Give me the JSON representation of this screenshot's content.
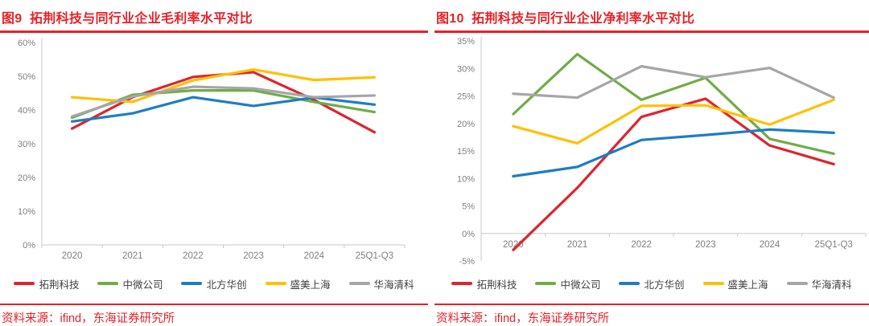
{
  "page": {
    "footer_source": "资料来源：ifind，东海证券研究所"
  },
  "chart_data": [
    {
      "type": "line",
      "title": "图9  拓荆科技与同行业企业毛利率水平对比",
      "categories": [
        "2020",
        "2021",
        "2022",
        "2023",
        "2024",
        "25Q1-Q3"
      ],
      "ylim": [
        0,
        60
      ],
      "ytick_step": 10,
      "ylabel_suffix": "%",
      "xaxis_at": 0,
      "grid": false,
      "legend_position": "bottom",
      "series": [
        {
          "name": "拓荆科技",
          "color": "#dc252e",
          "values": [
            34.5,
            43.8,
            49.8,
            51.2,
            43.0,
            33.4
          ]
        },
        {
          "name": "中微公司",
          "color": "#6fac46",
          "values": [
            37.7,
            44.5,
            45.8,
            45.8,
            42.4,
            39.4
          ]
        },
        {
          "name": "北方华创",
          "color": "#1f7cc4",
          "values": [
            36.6,
            39.0,
            43.8,
            41.2,
            43.7,
            41.6
          ]
        },
        {
          "name": "盛美上海",
          "color": "#ffc000",
          "values": [
            43.8,
            42.4,
            48.8,
            52.0,
            48.9,
            49.7
          ]
        },
        {
          "name": "华海清科",
          "color": "#a6a6a6",
          "values": [
            38.1,
            44.0,
            46.9,
            46.4,
            43.8,
            44.3
          ]
        }
      ]
    },
    {
      "type": "line",
      "title": "图10  拓荆科技与同行业企业净利率水平对比",
      "categories": [
        "2020",
        "2021",
        "2022",
        "2023",
        "2024",
        "25Q1-Q3"
      ],
      "ylim": [
        -5,
        35
      ],
      "ytick_step": 5,
      "ylabel_suffix": "%",
      "xaxis_at": 0,
      "grid": false,
      "legend_position": "bottom",
      "series": [
        {
          "name": "拓荆科技",
          "color": "#dc252e",
          "values": [
            -3.0,
            8.3,
            21.2,
            24.5,
            16.0,
            12.6
          ]
        },
        {
          "name": "中微公司",
          "color": "#6fac46",
          "values": [
            21.7,
            32.6,
            24.3,
            28.3,
            17.2,
            14.5
          ]
        },
        {
          "name": "北方华创",
          "color": "#1f7cc4",
          "values": [
            10.4,
            12.1,
            17.0,
            17.9,
            18.9,
            18.3
          ]
        },
        {
          "name": "盛美上海",
          "color": "#ffc000",
          "values": [
            19.5,
            16.4,
            23.2,
            23.3,
            19.8,
            24.3
          ]
        },
        {
          "name": "华海清科",
          "color": "#a6a6a6",
          "values": [
            25.4,
            24.7,
            30.4,
            28.4,
            30.1,
            24.7
          ]
        }
      ]
    }
  ]
}
